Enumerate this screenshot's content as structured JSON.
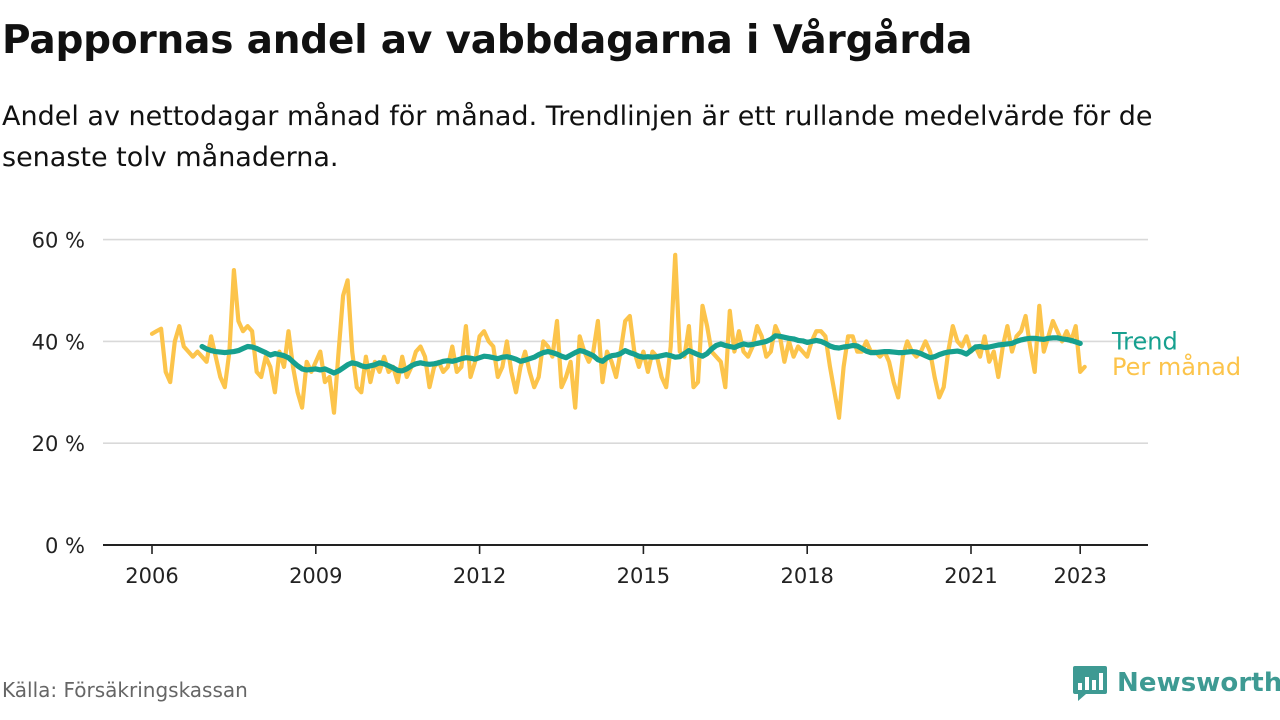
{
  "header": {
    "title": "Pappornas andel av vabbdagarna i Vårgårda",
    "subtitle": "Andel av nettodagar månad för månad. Trendlinjen är ett rullande medelvärde för de senaste tolv månaderna."
  },
  "footer": {
    "source": "Källa: Försäkringskassan",
    "brand": "Newsworthy",
    "brand_icon": "bar-chart-speech-bubble-icon"
  },
  "colors": {
    "trend": "#16a08f",
    "monthly": "#fcc44b",
    "grid": "#d9d9d9",
    "axis": "#222222",
    "brand": "#3e9a93"
  },
  "chart_data": {
    "type": "line",
    "title": "Pappornas andel av vabbdagarna i Vårgårda",
    "xlabel": "",
    "ylabel": "",
    "grid": true,
    "legend": "inline at right end of lines",
    "xlim": [
      2006,
      2023.3
    ],
    "ylim": [
      0,
      60
    ],
    "yticks": [
      0,
      20,
      40,
      60
    ],
    "ytick_labels": [
      "0 %",
      "20 %",
      "40 %",
      "60 %"
    ],
    "xticks": [
      2006,
      2009,
      2012,
      2015,
      2018,
      2021,
      2023
    ],
    "xtick_labels": [
      "2006",
      "2009",
      "2012",
      "2015",
      "2018",
      "2021",
      "2023"
    ],
    "series": [
      {
        "name": "Per månad",
        "start_year": 2006,
        "start_month": 1,
        "values": [
          41.5,
          42,
          42.5,
          34,
          32,
          40,
          43,
          39,
          38,
          37,
          38,
          37,
          36,
          41,
          37,
          33,
          31,
          38,
          54,
          44,
          42,
          43,
          42,
          34,
          33,
          37,
          35,
          30,
          38,
          35,
          42,
          35,
          30,
          27,
          36,
          34,
          36,
          38,
          32,
          33,
          26,
          38,
          49,
          52,
          38,
          31,
          30,
          37,
          32,
          36,
          34,
          37,
          34,
          35,
          32,
          37,
          33,
          35,
          38,
          39,
          37,
          31,
          35,
          36,
          34,
          35,
          39,
          34,
          35,
          43,
          33,
          36,
          41,
          42,
          40,
          39,
          33,
          35,
          40,
          34,
          30,
          35,
          38,
          34,
          31,
          33,
          40,
          39,
          37,
          44,
          31,
          33,
          36,
          27,
          41,
          38,
          36,
          38,
          44,
          32,
          38,
          36,
          33,
          38,
          44,
          45,
          38,
          35,
          38,
          34,
          38,
          37,
          33,
          31,
          39,
          57,
          38,
          37,
          43,
          31,
          32,
          47,
          43,
          38,
          37,
          36,
          31,
          46,
          38,
          42,
          38,
          37,
          39,
          43,
          41,
          37,
          38,
          43,
          41,
          36,
          40,
          37,
          39,
          38,
          37,
          40,
          42,
          42,
          41,
          35,
          30,
          25,
          35,
          41,
          41,
          38,
          38,
          40,
          38,
          38,
          37,
          38,
          36,
          32,
          29,
          37,
          40,
          38,
          37,
          38,
          40,
          38,
          33,
          29,
          31,
          38,
          43,
          40,
          39,
          41,
          38,
          39,
          37,
          41,
          36,
          38,
          33,
          39,
          43,
          38,
          41,
          42,
          45,
          39,
          34,
          47,
          38,
          41,
          44,
          42,
          40,
          42,
          40,
          43,
          34,
          35
        ],
        "end_label_value": 35
      },
      {
        "name": "Trend",
        "start_year": 2006,
        "start_month": 12,
        "values": [
          39,
          38.5,
          38.2,
          38,
          37.9,
          37.8,
          37.9,
          38,
          38.2,
          38.6,
          39,
          38.9,
          38.6,
          38.2,
          37.8,
          37.3,
          37.6,
          37.4,
          37.2,
          36.8,
          36,
          35.2,
          34.6,
          34.4,
          34.5,
          34.6,
          34.4,
          34.6,
          34.2,
          33.8,
          34.2,
          34.8,
          35.4,
          35.8,
          35.6,
          35.2,
          35,
          35.2,
          35.4,
          35.8,
          35.6,
          35.2,
          34.8,
          34.3,
          34.2,
          34.6,
          35.2,
          35.6,
          35.8,
          35.6,
          35.5,
          35.6,
          35.8,
          36.1,
          36.2,
          36.1,
          36.3,
          36.6,
          36.8,
          36.7,
          36.5,
          36.8,
          37.1,
          37,
          36.8,
          36.6,
          36.9,
          37,
          36.8,
          36.5,
          36.1,
          36.3,
          36.6,
          36.9,
          37.4,
          37.8,
          38,
          37.8,
          37.5,
          37.1,
          36.8,
          37.3,
          37.8,
          38.2,
          38,
          37.6,
          37.2,
          36.4,
          36.1,
          36.8,
          37.2,
          37.3,
          37.6,
          38.2,
          37.8,
          37.5,
          37.1,
          36.9,
          37,
          36.9,
          37,
          37.2,
          37.4,
          37.2,
          36.9,
          37,
          37.6,
          38.2,
          37.8,
          37.4,
          37.1,
          37.6,
          38.5,
          39.2,
          39.5,
          39.2,
          39,
          38.8,
          39.2,
          39.5,
          39.3,
          39.4,
          39.6,
          39.8,
          40,
          40.4,
          41.1,
          41,
          40.8,
          40.6,
          40.5,
          40.2,
          40.1,
          39.8,
          40,
          40.2,
          40,
          39.6,
          39.1,
          38.8,
          38.7,
          38.9,
          39,
          39.2,
          39.1,
          38.6,
          38.1,
          37.8,
          37.8,
          37.9,
          38,
          38,
          37.9,
          37.8,
          37.8,
          37.9,
          38,
          37.9,
          37.6,
          37.2,
          36.8,
          37,
          37.4,
          37.7,
          37.9,
          38,
          38.1,
          37.9,
          37.5,
          38.2,
          38.9,
          39,
          38.8,
          38.9,
          39.1,
          39.3,
          39.4,
          39.5,
          39.6,
          40,
          40.3,
          40.5,
          40.6,
          40.6,
          40.5,
          40.4,
          40.6,
          40.7,
          40.7,
          40.5,
          40.4,
          40.2,
          39.9,
          39.6
        ],
        "end_label_value": 40
      }
    ]
  }
}
